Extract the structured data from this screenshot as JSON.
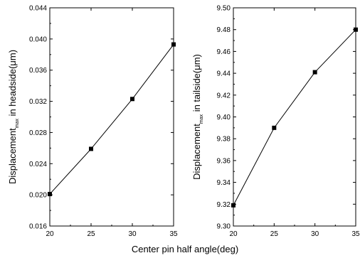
{
  "chart_data": [
    {
      "type": "line",
      "x": [
        20,
        25,
        30,
        35
      ],
      "series": [
        {
          "values": [
            0.0201,
            0.0259,
            0.0323,
            0.0393
          ]
        }
      ],
      "ylabel_main": "Displacement",
      "ylabel_sub": "max",
      "ylabel_rest": " in headside(μm)",
      "xlim": [
        20,
        35
      ],
      "ylim": [
        0.016,
        0.044
      ],
      "xticks": [
        "20",
        "25",
        "30",
        "35"
      ],
      "yticks": [
        "0.016",
        "0.020",
        "0.024",
        "0.028",
        "0.032",
        "0.036",
        "0.040",
        "0.044"
      ],
      "marker": "square",
      "grid": false,
      "line_color": "#000000"
    },
    {
      "type": "line",
      "x": [
        20,
        25,
        30,
        35
      ],
      "series": [
        {
          "values": [
            9.319,
            9.39,
            9.441,
            9.48
          ]
        }
      ],
      "ylabel_main": "Displacement",
      "ylabel_sub": "max",
      "ylabel_rest": " in tailside(μm)",
      "xlim": [
        20,
        35
      ],
      "ylim": [
        9.3,
        9.5
      ],
      "xticks": [
        "20",
        "25",
        "30",
        "35"
      ],
      "yticks": [
        "9.30",
        "9.32",
        "9.34",
        "9.36",
        "9.38",
        "9.40",
        "9.42",
        "9.44",
        "9.46",
        "9.48",
        "9.50"
      ],
      "marker": "square",
      "grid": false,
      "line_color": "#000000"
    }
  ],
  "shared_xlabel": "Center pin half angle(deg)"
}
